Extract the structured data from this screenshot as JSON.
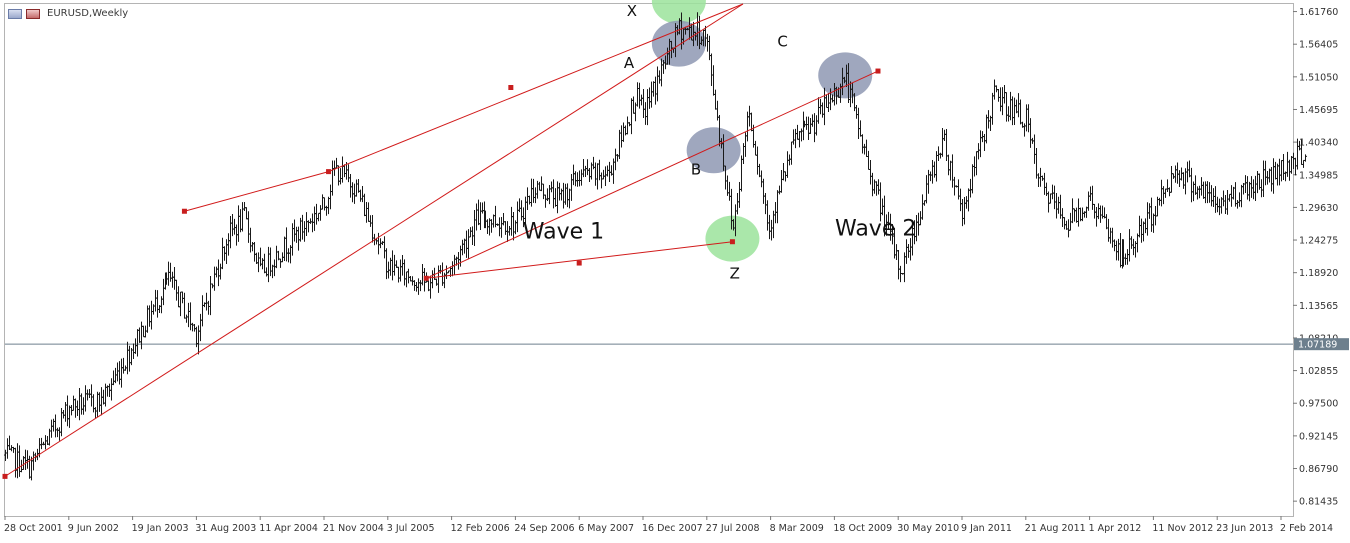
{
  "window": {
    "title": "EURUSD,Weekly"
  },
  "chart_data": {
    "type": "bar",
    "symbol": "EURUSD",
    "timeframe": "Weekly",
    "ylim": [
      0.79,
      1.63
    ],
    "y_ticks": [
      "1.61760",
      "1.56405",
      "1.51050",
      "1.45695",
      "1.40340",
      "1.34985",
      "1.29630",
      "1.24275",
      "1.18920",
      "1.13565",
      "1.08210",
      "1.02855",
      "0.97500",
      "0.92145",
      "0.86790",
      "0.81435"
    ],
    "x_ticks": [
      "28 Oct 2001",
      "9 Jun 2002",
      "19 Jan 2003",
      "31 Aug 2003",
      "11 Apr 2004",
      "21 Nov 2004",
      "3 Jul 2005",
      "12 Feb 2006",
      "24 Sep 2006",
      "6 May 2007",
      "16 Dec 2007",
      "27 Jul 2008",
      "8 Mar 2009",
      "18 Oct 2009",
      "30 May 2010",
      "9 Jan 2011",
      "21 Aug 2011",
      "1 Apr 2012",
      "11 Nov 2012",
      "23 Jun 2013",
      "2 Feb 2014"
    ],
    "current_price": "1.07189",
    "price_path": [
      [
        "2001-10-28",
        0.89
      ],
      [
        "2002-01-20",
        0.87
      ],
      [
        "2002-06-09",
        0.97
      ],
      [
        "2002-10-01",
        0.98
      ],
      [
        "2003-01-19",
        1.07
      ],
      [
        "2003-05-25",
        1.18
      ],
      [
        "2003-08-31",
        1.09
      ],
      [
        "2003-12-20",
        1.25
      ],
      [
        "2004-02-15",
        1.28
      ],
      [
        "2004-04-11",
        1.19
      ],
      [
        "2004-07-01",
        1.23
      ],
      [
        "2004-11-21",
        1.3
      ],
      [
        "2004-12-28",
        1.36
      ],
      [
        "2005-03-10",
        1.33
      ],
      [
        "2005-07-03",
        1.2
      ],
      [
        "2005-11-15",
        1.17
      ],
      [
        "2006-02-12",
        1.2
      ],
      [
        "2006-05-10",
        1.28
      ],
      [
        "2006-09-24",
        1.27
      ],
      [
        "2006-12-01",
        1.33
      ],
      [
        "2007-03-01",
        1.31
      ],
      [
        "2007-05-06",
        1.35
      ],
      [
        "2007-08-15",
        1.35
      ],
      [
        "2007-11-20",
        1.48
      ],
      [
        "2007-12-16",
        1.45
      ],
      [
        "2008-04-20",
        1.59
      ],
      [
        "2008-07-15",
        1.58
      ],
      [
        "2008-07-27",
        1.56
      ],
      [
        "2008-10-25",
        1.26
      ],
      [
        "2008-12-18",
        1.46
      ],
      [
        "2009-03-01",
        1.26
      ],
      [
        "2009-03-08",
        1.28
      ],
      [
        "2009-06-01",
        1.41
      ],
      [
        "2009-08-01",
        1.43
      ],
      [
        "2009-11-25",
        1.51
      ],
      [
        "2010-02-10",
        1.37
      ],
      [
        "2010-06-07",
        1.19
      ],
      [
        "2010-08-20",
        1.3
      ],
      [
        "2010-11-01",
        1.41
      ],
      [
        "2011-01-09",
        1.29
      ],
      [
        "2011-05-01",
        1.48
      ],
      [
        "2011-08-21",
        1.44
      ],
      [
        "2011-10-01",
        1.34
      ],
      [
        "2012-01-10",
        1.27
      ],
      [
        "2012-04-01",
        1.31
      ],
      [
        "2012-07-24",
        1.21
      ],
      [
        "2012-11-11",
        1.29
      ],
      [
        "2013-02-01",
        1.36
      ],
      [
        "2013-06-23",
        1.3
      ],
      [
        "2013-09-01",
        1.32
      ],
      [
        "2014-02-02",
        1.36
      ],
      [
        "2014-05-01",
        1.39
      ]
    ],
    "trendlines": [
      {
        "from": [
          "2001-10-28",
          0.855
        ],
        "to": [
          "2008-12-01",
          1.63
        ]
      },
      {
        "from": [
          "2004-12-07",
          1.355
        ],
        "to": [
          "2008-12-01",
          1.63
        ]
      },
      {
        "from": [
          "2003-07-20",
          1.29
        ],
        "to": [
          "2004-12-07",
          1.355
        ]
      },
      {
        "from": [
          "2005-11-15",
          1.18
        ],
        "to": [
          "2010-03-20",
          1.52
        ]
      },
      {
        "from": [
          "2005-11-15",
          1.18
        ],
        "to": [
          "2008-10-25",
          1.24
        ]
      }
    ],
    "markers": [
      {
        "x": "2001-10-28",
        "y": 0.855
      },
      {
        "x": "2003-07-20",
        "y": 1.29
      },
      {
        "x": "2004-12-07",
        "y": 1.355
      },
      {
        "x": "2006-09-08",
        "y": 1.493
      },
      {
        "x": "2010-03-20",
        "y": 1.52
      },
      {
        "x": "2005-11-15",
        "y": 1.18
      },
      {
        "x": "2007-05-06",
        "y": 1.205
      },
      {
        "x": "2008-10-25",
        "y": 1.24
      }
    ],
    "highlights": [
      {
        "x": "2008-04-20",
        "y": 1.635,
        "color": "#9be39b"
      },
      {
        "x": "2008-04-20",
        "y": 1.565,
        "color": "#8e98b3"
      },
      {
        "x": "2008-08-20",
        "y": 1.39,
        "color": "#8e98b3"
      },
      {
        "x": "2009-11-25",
        "y": 1.513,
        "color": "#8e98b3"
      },
      {
        "x": "2008-10-25",
        "y": 1.245,
        "color": "#9be39b"
      }
    ],
    "annotations": [
      {
        "text": "X",
        "x": "2007-10-20",
        "y": 1.61,
        "size": "small"
      },
      {
        "text": "A",
        "x": "2007-10-10",
        "y": 1.525,
        "size": "small"
      },
      {
        "text": "B",
        "x": "2008-06-01",
        "y": 1.35,
        "size": "small"
      },
      {
        "text": "C",
        "x": "2009-04-01",
        "y": 1.56,
        "size": "small"
      },
      {
        "text": "Z",
        "x": "2008-10-15",
        "y": 1.18,
        "size": "small"
      },
      {
        "text": "Wave 1",
        "x": "2006-10-20",
        "y": 1.245,
        "size": "big"
      },
      {
        "text": "Wave 2",
        "x": "2009-10-20",
        "y": 1.25,
        "size": "big"
      }
    ]
  }
}
